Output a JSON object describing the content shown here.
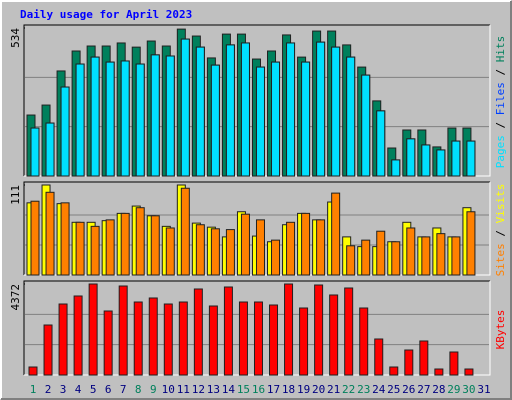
{
  "chart_data": [
    {
      "type": "bar",
      "title": "Daily usage for April 2023",
      "ylim": [
        0,
        534
      ],
      "yticks": [
        534
      ],
      "legend_separator": " / ",
      "series": [
        {
          "name": "Hits",
          "color": "#00805c",
          "values": [
            220,
            256,
            379,
            451,
            469,
            469,
            480,
            465,
            487,
            469,
            530,
            505,
            426,
            512,
            512,
            422,
            451,
            509,
            429,
            523,
            523,
            473,
            393,
            271,
            101,
            166,
            166,
            105,
            173,
            173,
            null
          ]
        },
        {
          "name": "Files",
          "color": "#0040ff",
          "values": [
            173,
            191,
            321,
            404,
            429,
            411,
            415,
            404,
            437,
            433,
            494,
            465,
            400,
            473,
            480,
            393,
            411,
            480,
            411,
            483,
            465,
            429,
            364,
            235,
            58,
            134,
            112,
            94,
            126,
            126,
            null
          ]
        },
        {
          "name": "Pages",
          "color": "#00e0ff",
          "values": [
            173,
            191,
            321,
            404,
            429,
            411,
            415,
            404,
            437,
            433,
            494,
            465,
            400,
            473,
            480,
            393,
            411,
            480,
            411,
            483,
            465,
            429,
            364,
            235,
            58,
            134,
            112,
            94,
            126,
            126,
            null
          ]
        }
      ]
    },
    {
      "type": "bar",
      "ylim": [
        0,
        111
      ],
      "yticks": [
        111
      ],
      "legend_separator": " / ",
      "series": [
        {
          "name": "Visits",
          "color": "#ffff00",
          "values": [
            89,
            111,
            88,
            65,
            65,
            67,
            76,
            85,
            73,
            60,
            111,
            64,
            59,
            47,
            78,
            48,
            41,
            62,
            76,
            68,
            90,
            47,
            35,
            35,
            41,
            65,
            47,
            58,
            47,
            83,
            null
          ]
        },
        {
          "name": "Sites",
          "color": "#ff8000",
          "values": [
            91,
            102,
            89,
            65,
            60,
            68,
            76,
            83,
            73,
            58,
            107,
            62,
            57,
            56,
            75,
            68,
            43,
            65,
            76,
            68,
            101,
            36,
            43,
            54,
            41,
            58,
            47,
            51,
            47,
            78,
            null
          ]
        }
      ]
    },
    {
      "type": "bar",
      "ylim": [
        0,
        4372
      ],
      "yticks": [
        4372
      ],
      "legend_separator": " / ",
      "categories": [
        "1",
        "2",
        "3",
        "4",
        "5",
        "6",
        "7",
        "8",
        "9",
        "10",
        "11",
        "12",
        "13",
        "14",
        "15",
        "16",
        "17",
        "18",
        "19",
        "20",
        "21",
        "22",
        "23",
        "24",
        "25",
        "26",
        "27",
        "28",
        "29",
        "30",
        "31"
      ],
      "category_colors": [
        "#00805c",
        "#000080",
        "#000080",
        "#000080",
        "#000080",
        "#000080",
        "#000080",
        "#00805c",
        "#00805c",
        "#000080",
        "#000080",
        "#000080",
        "#000080",
        "#000080",
        "#00805c",
        "#00805c",
        "#000080",
        "#000080",
        "#000080",
        "#000080",
        "#000080",
        "#00805c",
        "#00805c",
        "#000080",
        "#000080",
        "#000080",
        "#000080",
        "#000080",
        "#00805c",
        "#00805c",
        "#000080"
      ],
      "series": [
        {
          "name": "KBytes",
          "color": "#ff0000",
          "values": [
            384,
            2402,
            3411,
            3796,
            4372,
            3075,
            4276,
            3507,
            3700,
            3411,
            3507,
            4132,
            3315,
            4228,
            3507,
            3507,
            3363,
            4372,
            3219,
            4324,
            3844,
            4180,
            3219,
            1730,
            384,
            1201,
            1634,
            288,
            1105,
            288,
            null
          ]
        }
      ]
    }
  ]
}
